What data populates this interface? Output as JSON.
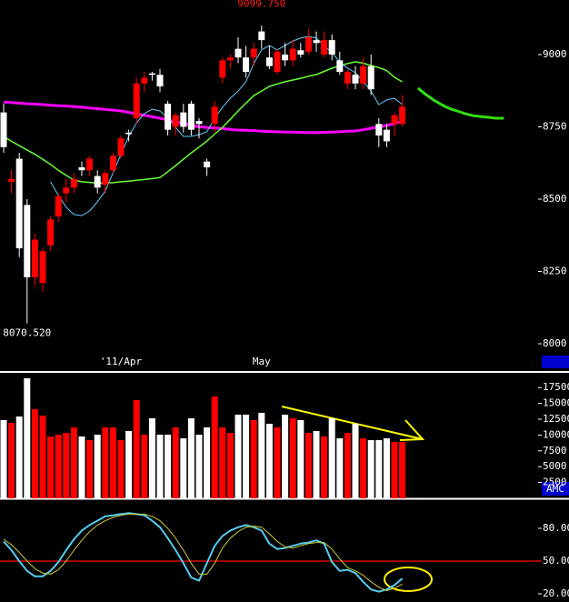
{
  "chart_data": [
    {
      "type": "candlestick",
      "categories": [
        null,
        null,
        null,
        null,
        null,
        null,
        null,
        null,
        null,
        null,
        null,
        null,
        null,
        null,
        null,
        "'11/Apr",
        null,
        null,
        null,
        null,
        null,
        null,
        null,
        null,
        null,
        null,
        null,
        null,
        null,
        null,
        null,
        null,
        null,
        "May",
        null,
        null,
        null,
        null,
        null,
        null,
        null,
        null,
        null,
        null,
        null,
        null,
        null,
        null,
        null,
        null,
        null,
        null,
        null,
        null,
        null,
        null,
        null,
        null,
        null,
        null,
        null,
        null,
        null,
        null,
        null
      ],
      "open": [
        8800,
        8560,
        8640,
        8480,
        8230,
        8210,
        8340,
        8440,
        8520,
        8540,
        8610,
        8600,
        8580,
        8550,
        8600,
        8650,
        8730,
        8780,
        8900,
        8935,
        8930,
        8830,
        8750,
        8800,
        8830,
        8770,
        8630,
        8760,
        8920,
        8980,
        9020,
        8990,
        8990,
        9080,
        8990,
        8940,
        9000,
        8980,
        9015,
        9010,
        9050,
        9000,
        9050,
        8980,
        8900,
        8930,
        8900,
        8960,
        8760,
        8740,
        8760,
        8760,
        null,
        null,
        null,
        null,
        null,
        null,
        null,
        null,
        null,
        null,
        null,
        null,
        null
      ],
      "high": [
        8830,
        8600,
        8660,
        8500,
        8380,
        8330,
        8440,
        8520,
        8570,
        8590,
        8630,
        8650,
        8600,
        8600,
        8660,
        8720,
        8740,
        8920,
        8940,
        8940,
        8950,
        8840,
        8800,
        8830,
        8840,
        8780,
        8640,
        8840,
        8990,
        9000,
        9060,
        9030,
        9040,
        9099.75,
        9030,
        9020,
        9040,
        9050,
        9040,
        9090,
        9080,
        9080,
        9070,
        9010,
        8950,
        8960,
        8990,
        9000,
        8780,
        8760,
        8800,
        8860,
        null,
        null,
        null,
        null,
        null,
        null,
        null,
        null,
        null,
        null,
        null,
        null,
        null
      ],
      "low": [
        8660,
        8520,
        8300,
        8070.52,
        8200,
        8180,
        8320,
        8420,
        8490,
        8520,
        8580,
        8580,
        8520,
        8520,
        8590,
        8640,
        8700,
        8760,
        8870,
        8910,
        8870,
        8720,
        8720,
        8730,
        8720,
        8710,
        8580,
        8730,
        8900,
        8950,
        8970,
        8920,
        8960,
        9020,
        8950,
        8930,
        8960,
        8960,
        8990,
        9000,
        9010,
        8990,
        8980,
        8930,
        8880,
        8880,
        8880,
        8860,
        8680,
        8680,
        8720,
        8750,
        null,
        null,
        null,
        null,
        null,
        null,
        null,
        null,
        null,
        null,
        null,
        null,
        null
      ],
      "close": [
        8680,
        8570,
        8330,
        8230,
        8360,
        8320,
        8430,
        8510,
        8540,
        8570,
        8600,
        8640,
        8540,
        8590,
        8650,
        8710,
        8725,
        8900,
        8920,
        8930,
        8890,
        8740,
        8790,
        8750,
        8740,
        8760,
        8610,
        8820,
        8980,
        8990,
        8990,
        8940,
        9020,
        9050,
        8960,
        9010,
        8980,
        9020,
        9000,
        9060,
        9040,
        9050,
        9000,
        8940,
        8940,
        8900,
        8960,
        8880,
        8720,
        8700,
        8790,
        8820,
        null,
        null,
        null,
        null,
        null,
        null,
        null,
        null,
        null,
        null,
        null,
        null,
        null
      ],
      "up_color": "#ff0000",
      "down_color": "#ffffff",
      "max_label": "9099.750",
      "min_label": "8070.520",
      "series": [
        {
          "color": "#ff00ff",
          "line_width": 3,
          "values": [
            8836,
            8834,
            8832,
            8830,
            8829,
            8827,
            8825,
            8823,
            8822,
            8820,
            8818,
            8815,
            8813,
            8810,
            8808,
            8805,
            8800,
            8795,
            8790,
            8785,
            8780,
            8774,
            8768,
            8762,
            8756,
            8750,
            8748,
            8746,
            8744,
            8741,
            8739,
            8738,
            8737,
            8735,
            8734,
            8733,
            8732,
            8732,
            8731,
            8730,
            8730,
            8731,
            8732,
            8733,
            8735,
            8736,
            8740,
            8745,
            8750,
            8755,
            8761,
            8770,
            null,
            null,
            null,
            null,
            null,
            null,
            null,
            null,
            null,
            null,
            null,
            null,
            null
          ]
        },
        {
          "color": "#66ff33",
          "line_width": 1.5,
          "values": [
            8717,
            8700,
            8685,
            8670,
            8655,
            8638,
            8620,
            8600,
            8582,
            8566,
            8560,
            8558,
            8556,
            8556,
            8557,
            8560,
            8562,
            8565,
            8568,
            8571,
            8575,
            8595,
            8616,
            8638,
            8660,
            8680,
            8701,
            8725,
            8748,
            8776,
            8805,
            8832,
            8858,
            8874,
            8890,
            8898,
            8906,
            8912,
            8918,
            8925,
            8931,
            8942,
            8953,
            8961,
            8969,
            8975,
            8970,
            8962,
            8955,
            8945,
            8921,
            8906,
            null,
            null,
            null,
            null,
            null,
            null,
            null,
            null,
            null,
            null,
            null,
            null,
            null
          ]
        },
        {
          "color": "#66ccff",
          "line_width": 1,
          "values": [
            null,
            null,
            null,
            null,
            null,
            null,
            8560,
            8513,
            8472,
            8447,
            8443,
            8459,
            8491,
            8528,
            8591,
            8654,
            8717,
            8764,
            8796,
            8811,
            8805,
            8780,
            8748,
            8717,
            8717,
            8723,
            8733,
            8780,
            8818,
            8849,
            8874,
            8906,
            8969,
            9016,
            9031,
            9016,
            9031,
            9047,
            9057,
            9063,
            9057,
            9031,
            9006,
            8975,
            8953,
            8937,
            8906,
            8874,
            8827,
            8843,
            8849,
            8827,
            null,
            null,
            null,
            null,
            null,
            null,
            null,
            null,
            null,
            null,
            null,
            null,
            null
          ]
        },
        {
          "color": "#33dd11",
          "line_width": 3,
          "values": [
            null,
            null,
            null,
            null,
            null,
            null,
            null,
            null,
            null,
            null,
            null,
            null,
            null,
            null,
            null,
            null,
            null,
            null,
            null,
            null,
            null,
            null,
            null,
            null,
            null,
            null,
            null,
            null,
            null,
            null,
            null,
            null,
            null,
            null,
            null,
            null,
            null,
            null,
            null,
            null,
            null,
            null,
            null,
            null,
            null,
            null,
            null,
            null,
            null,
            null,
            null,
            null,
            null,
            8884,
            8862,
            8843,
            8827,
            8814,
            8805,
            8796,
            8789,
            8786,
            8783,
            8780,
            8780
          ]
        }
      ],
      "ylim": [
        7968.6,
        9188.7
      ],
      "yticks": [
        {
          "value": 8000,
          "label": "8000.0"
        },
        {
          "value": 8250,
          "label": "8250.0"
        },
        {
          "value": 8500,
          "label": "8500.0"
        },
        {
          "value": 8750,
          "label": "8750.0"
        },
        {
          "value": 9000,
          "label": "9000.0"
        }
      ]
    },
    {
      "type": "bar",
      "label": "AMC",
      "values": [
        12360,
        11930,
        12930,
        18970,
        14080,
        13080,
        9770,
        10060,
        10350,
        11210,
        9770,
        9200,
        10060,
        11210,
        11210,
        9200,
        10640,
        15520,
        10060,
        12650,
        10060,
        10060,
        11210,
        9480,
        12650,
        10060,
        11210,
        16090,
        11210,
        10350,
        13220,
        13220,
        12360,
        13510,
        11780,
        11210,
        13220,
        12650,
        12360,
        10350,
        10640,
        9770,
        12650,
        9480,
        10350,
        11780,
        9480,
        9200,
        9200,
        9480,
        8910,
        8910,
        null,
        null,
        null,
        null,
        null,
        null,
        null,
        null,
        null,
        null,
        null,
        null,
        null
      ],
      "ylim": [
        0,
        19828
      ],
      "yticks": [
        2500,
        5000,
        7500,
        10000,
        12500,
        15000,
        17500
      ]
    },
    {
      "type": "line",
      "series": [
        {
          "color": "#55ccee",
          "line_width": 2,
          "values": [
            68,
            60,
            50,
            41,
            36,
            36,
            41,
            49,
            60,
            70,
            78,
            83,
            87,
            91,
            92,
            93,
            94,
            93,
            92,
            87,
            81,
            71,
            60,
            48,
            35,
            32,
            48,
            64,
            73,
            78,
            81,
            83,
            81,
            78,
            66,
            61,
            62,
            64,
            66,
            67,
            69,
            66,
            49,
            41,
            42,
            39,
            31,
            24,
            22,
            24,
            28,
            34,
            null,
            null,
            null,
            null,
            null,
            null,
            null,
            null,
            null,
            null,
            null,
            null,
            null
          ]
        },
        {
          "color": "#cccc33",
          "line_width": 1,
          "values": [
            70,
            65,
            58,
            50,
            43,
            39,
            38,
            42,
            50,
            60,
            69,
            77,
            83,
            87,
            90,
            92,
            93,
            93,
            93,
            91,
            87,
            80,
            71,
            60,
            48,
            38,
            38,
            48,
            62,
            71,
            77,
            81,
            82,
            81,
            75,
            68,
            63,
            62,
            64,
            66,
            67,
            67,
            61,
            52,
            44,
            41,
            37,
            31,
            26,
            23,
            25,
            29,
            null,
            null,
            null,
            null,
            null,
            null,
            null,
            null,
            null,
            null,
            null,
            null,
            null
          ]
        }
      ],
      "hline": {
        "value": 50,
        "color": "#ff0000"
      },
      "ylim": [
        12.5,
        105.8
      ],
      "yticks": [
        {
          "value": 20,
          "label": "20.00"
        },
        {
          "value": 50,
          "label": "50.00"
        },
        {
          "value": 80,
          "label": "80.00"
        }
      ]
    }
  ]
}
